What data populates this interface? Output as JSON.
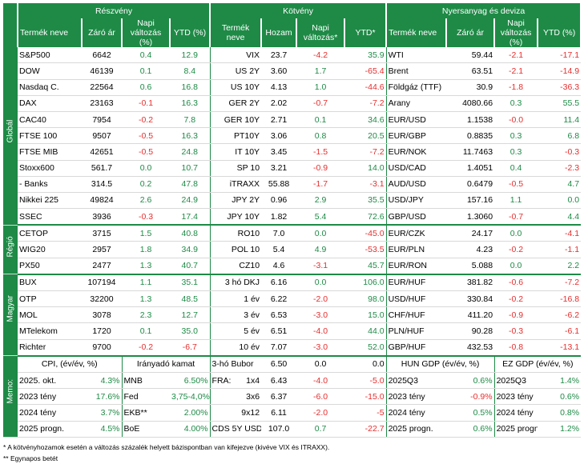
{
  "groups": {
    "stocks": "Részvény",
    "bonds": "Kötvény",
    "commodities": "Nyersanyag és deviza"
  },
  "columns": {
    "stocks": [
      "Termék neve",
      "Záró ár",
      "Napi változás (%)",
      "YTD (%)"
    ],
    "bonds": [
      "Termék neve",
      "Hozam",
      "Napi változás*",
      "YTD*"
    ],
    "commodities": [
      "Termék neve",
      "Záró ár",
      "Napi változás (%)",
      "YTD (%)"
    ]
  },
  "sections": [
    {
      "label": "Globál",
      "rows": [
        {
          "s": [
            "S&P500",
            "6642",
            "0.4",
            "12.9"
          ],
          "b": [
            "VIX",
            "23.7",
            "-4.2",
            "35.9"
          ],
          "c": [
            "WTI",
            "59.44",
            "-2.1",
            "-17.1"
          ]
        },
        {
          "s": [
            "DOW",
            "46139",
            "0.1",
            "8.4"
          ],
          "b": [
            "US 2Y",
            "3.60",
            "1.7",
            "-65.4"
          ],
          "c": [
            "Brent",
            "63.51",
            "-2.1",
            "-14.9"
          ]
        },
        {
          "s": [
            "Nasdaq C.",
            "22564",
            "0.6",
            "16.8"
          ],
          "b": [
            "US 10Y",
            "4.13",
            "1.0",
            "-44.6"
          ],
          "c": [
            "Földgáz (TTF)",
            "30.9",
            "-1.8",
            "-36.3"
          ]
        },
        {
          "s": [
            "DAX",
            "23163",
            "-0.1",
            "16.3"
          ],
          "b": [
            "GER 2Y",
            "2.02",
            "-0.7",
            "-7.2"
          ],
          "c": [
            "Arany",
            "4080.66",
            "0.3",
            "55.5"
          ]
        },
        {
          "s": [
            "CAC40",
            "7954",
            "-0.2",
            "7.8"
          ],
          "b": [
            "GER 10Y",
            "2.71",
            "0.1",
            "34.6"
          ],
          "c": [
            "EUR/USD",
            "1.1538",
            "-0.0",
            "11.4"
          ]
        },
        {
          "s": [
            "FTSE 100",
            "9507",
            "-0.5",
            "16.3"
          ],
          "b": [
            "PT10Y",
            "3.06",
            "0.8",
            "20.5"
          ],
          "c": [
            "EUR/GBP",
            "0.8835",
            "0.3",
            "6.8"
          ]
        },
        {
          "s": [
            "FTSE MIB",
            "42651",
            "-0.5",
            "24.8"
          ],
          "b": [
            "IT 10Y",
            "3.45",
            "-1.5",
            "-7.2"
          ],
          "c": [
            "EUR/NOK",
            "11.7463",
            "0.3",
            "-0.3"
          ]
        },
        {
          "s": [
            "Stoxx600",
            "561.7",
            "0.0",
            "10.7"
          ],
          "b": [
            "SP 10",
            "3.21",
            "-0.9",
            "14.0"
          ],
          "c": [
            "USD/CAD",
            "1.4051",
            "0.4",
            "-2.3"
          ]
        },
        {
          "s": [
            "- Banks",
            "314.5",
            "0.2",
            "47.8"
          ],
          "b": [
            "iTRAXX",
            "55.88",
            "-1.7",
            "-3.1"
          ],
          "c": [
            "AUD/USD",
            "0.6479",
            "-0.5",
            "4.7"
          ]
        },
        {
          "s": [
            "Nikkei 225",
            "49824",
            "2.6",
            "24.9"
          ],
          "b": [
            "JPY 2Y",
            "0.96",
            "2.9",
            "35.5"
          ],
          "c": [
            "USD/JPY",
            "157.16",
            "1.1",
            "0.0"
          ]
        },
        {
          "s": [
            "SSEC",
            "3936",
            "-0.3",
            "17.4"
          ],
          "b": [
            "JPY 10Y",
            "1.82",
            "5.4",
            "72.6"
          ],
          "c": [
            "GBP/USD",
            "1.3060",
            "-0.7",
            "4.4"
          ]
        }
      ]
    },
    {
      "label": "Régió",
      "rows": [
        {
          "s": [
            "CETOP",
            "3715",
            "1.5",
            "40.8"
          ],
          "b": [
            "RO10",
            "7.0",
            "0.0",
            "-45.0"
          ],
          "c": [
            "EUR/CZK",
            "24.17",
            "0.0",
            "-4.1"
          ]
        },
        {
          "s": [
            "WIG20",
            "2957",
            "1.8",
            "34.9"
          ],
          "b": [
            "POL 10",
            "5.4",
            "4.9",
            "-53.5"
          ],
          "c": [
            "EUR/PLN",
            "4.23",
            "-0.2",
            "-1.1"
          ]
        },
        {
          "s": [
            "PX50",
            "2477",
            "1.3",
            "40.7"
          ],
          "b": [
            "CZ10",
            "4.6",
            "-3.1",
            "45.7"
          ],
          "c": [
            "EUR/RON",
            "5.088",
            "0.0",
            "2.2"
          ]
        }
      ]
    },
    {
      "label": "Magyar",
      "rows": [
        {
          "s": [
            "BUX",
            "107194",
            "1.1",
            "35.1"
          ],
          "b": [
            "3 hó DKJ",
            "6.16",
            "0.0",
            "106.0"
          ],
          "c": [
            "EUR/HUF",
            "381.82",
            "-0.6",
            "-7.2"
          ]
        },
        {
          "s": [
            "OTP",
            "32200",
            "1.3",
            "48.5"
          ],
          "b": [
            "1 év",
            "6.22",
            "-2.0",
            "98.0"
          ],
          "c": [
            "USD/HUF",
            "330.84",
            "-0.2",
            "-16.8"
          ]
        },
        {
          "s": [
            "MOL",
            "3078",
            "2.3",
            "12.7"
          ],
          "b": [
            "3 év",
            "6.53",
            "-3.0",
            "15.0"
          ],
          "c": [
            "CHF/HUF",
            "411.20",
            "-0.9",
            "-6.2"
          ]
        },
        {
          "s": [
            "MTelekom",
            "1720",
            "0.1",
            "35.0"
          ],
          "b": [
            "5 év",
            "6.51",
            "-4.0",
            "44.0"
          ],
          "c": [
            "PLN/HUF",
            "90.28",
            "-0.3",
            "-6.1"
          ]
        },
        {
          "s": [
            "Richter",
            "9700",
            "-0.2",
            "-6.7"
          ],
          "b": [
            "10 év",
            "7.07",
            "-3.0",
            "52.0"
          ],
          "c": [
            "GBP/HUF",
            "432.53",
            "-0.8",
            "-13.1"
          ]
        }
      ]
    }
  ],
  "memo": {
    "label": "Memo:",
    "cpi_title": "CPI, (év/év, %)",
    "rate_title": "Irányadó kamat",
    "bubor_label": "3-hó Bubor",
    "bubor_vals": [
      "6.50",
      "0.0",
      "0.0"
    ],
    "hun_gdp_title": "HUN GDP (év/év, %)",
    "ez_gdp_title": "EZ GDP (év/év, %)",
    "rows": [
      {
        "cpi": [
          "2025. okt.",
          "4.3%"
        ],
        "rate": [
          "MNB",
          "6.50%"
        ],
        "mid": [
          "FRA:",
          "1x4",
          "6.43",
          "-4.0",
          "-5.0"
        ],
        "hun": [
          "2025Q3",
          "0.6%"
        ],
        "ez": [
          "2025Q3",
          "1.4%"
        ]
      },
      {
        "cpi": [
          "2023 tény",
          "17.6%"
        ],
        "rate": [
          "Fed",
          "3,75-4,0%"
        ],
        "mid": [
          "",
          "3x6",
          "6.37",
          "-6.0",
          "-15.0"
        ],
        "hun": [
          "2023 tény",
          "-0.9%"
        ],
        "ez": [
          "2023 tény",
          "0.6%"
        ]
      },
      {
        "cpi": [
          "2024 tény",
          "3.7%"
        ],
        "rate": [
          "EKB**",
          "2.00%"
        ],
        "mid": [
          "",
          "9x12",
          "6.11",
          "-2.0",
          "-5"
        ],
        "hun": [
          "2024 tény",
          "0.5%"
        ],
        "ez": [
          "2024 tény",
          "0.8%"
        ]
      },
      {
        "cpi": [
          "2025 progn.",
          "4.5%"
        ],
        "rate": [
          "BoE",
          "4.00%"
        ],
        "mid": [
          "CDS 5Y USD",
          "",
          "107.0",
          "0.7",
          "-22.7"
        ],
        "hun": [
          "2025 progn.",
          "0.6%"
        ],
        "ez": [
          "2025 progn.",
          "1.2%"
        ]
      }
    ]
  },
  "footnotes": [
    "* A kötvényhozamok esetén a változás százalék helyett bázispontban van kifejezve (kivéve VIX és ITRAXX).",
    "** Egynapos betét"
  ],
  "colors": {
    "accent": "#1e8a46",
    "negative": "#e62e2e",
    "positive": "#1e8a46"
  }
}
